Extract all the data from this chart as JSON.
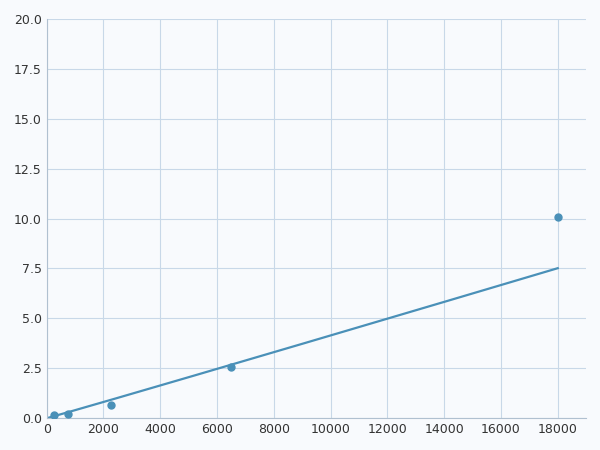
{
  "x_points": [
    250,
    750,
    2250,
    6500,
    18000
  ],
  "y_points": [
    0.15,
    0.22,
    0.65,
    2.55,
    10.1
  ],
  "line_color": "#4a90b8",
  "marker_color": "#4a90b8",
  "marker_size": 5,
  "line_width": 1.6,
  "xlim": [
    0,
    19000
  ],
  "ylim": [
    0,
    20
  ],
  "xticks": [
    0,
    2000,
    4000,
    6000,
    8000,
    10000,
    12000,
    14000,
    16000,
    18000
  ],
  "yticks": [
    0.0,
    2.5,
    5.0,
    7.5,
    10.0,
    12.5,
    15.0,
    17.5,
    20.0
  ],
  "grid_color": "#c8d8e8",
  "background_color": "#f8fafd",
  "fig_bg_color": "#f8fafd"
}
